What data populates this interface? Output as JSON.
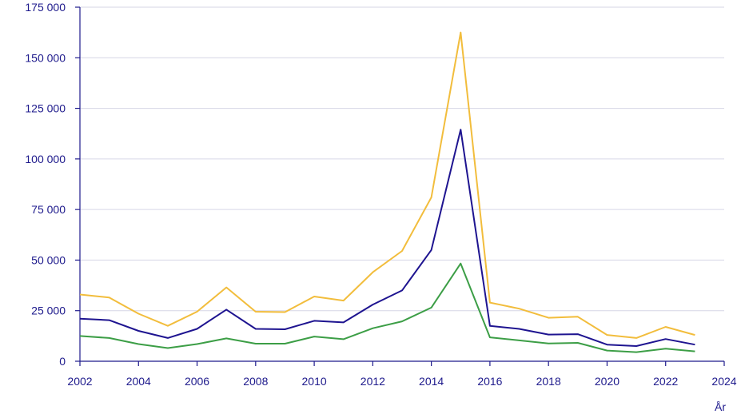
{
  "chart_data": {
    "type": "line",
    "title": "",
    "xlabel": "År",
    "ylabel": "",
    "x": [
      2002,
      2003,
      2004,
      2005,
      2006,
      2007,
      2008,
      2009,
      2010,
      2011,
      2012,
      2013,
      2014,
      2015,
      2016,
      2017,
      2018,
      2019,
      2020,
      2021,
      2022,
      2023
    ],
    "xlim": [
      2002,
      2024
    ],
    "ylim": [
      0,
      175000
    ],
    "x_ticks": [
      "2002",
      "2004",
      "2006",
      "2008",
      "2010",
      "2012",
      "2014",
      "2016",
      "2018",
      "2020",
      "2022",
      "2024"
    ],
    "y_ticks": [
      "0",
      "25 000",
      "50 000",
      "75 000",
      "100 000",
      "125 000",
      "150 000",
      "175 000"
    ],
    "grid": true,
    "series": [
      {
        "color": "#f2bd3c",
        "values": [
          33000,
          31500,
          23500,
          17500,
          24500,
          36500,
          24500,
          24300,
          32000,
          30000,
          44000,
          54500,
          81000,
          162500,
          29000,
          26000,
          21500,
          22000,
          13000,
          11500,
          17000,
          13000
        ]
      },
      {
        "color": "#1e1490",
        "values": [
          21000,
          20300,
          15000,
          11500,
          16000,
          25500,
          16000,
          15800,
          20000,
          19200,
          28000,
          35000,
          55000,
          114500,
          17500,
          16000,
          13200,
          13400,
          8200,
          7500,
          11000,
          8200
        ]
      },
      {
        "color": "#3c9e46",
        "values": [
          12500,
          11500,
          8500,
          6500,
          8500,
          11300,
          8700,
          8700,
          12200,
          10900,
          16300,
          19700,
          26500,
          48300,
          11800,
          10300,
          8800,
          9100,
          5300,
          4500,
          6200,
          4900
        ]
      }
    ]
  }
}
